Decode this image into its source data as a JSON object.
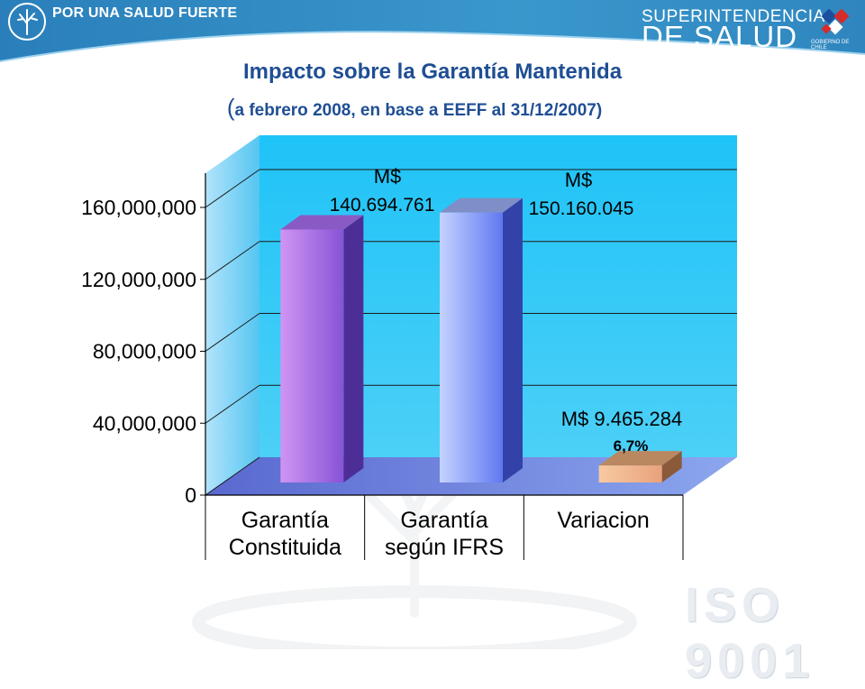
{
  "header": {
    "tagline": "POR UNA SALUD FUERTE",
    "org_line1": "SUPERINTENDENCIA",
    "org_line2": "DE SALUD",
    "gov_label": "GOBIERNO DE CHILE"
  },
  "slide": {
    "title": "Impacto sobre la Garantía Mantenida",
    "subtitle_open": "(",
    "subtitle": "a febrero 2008, en base a EEFF al 31/12/2007)"
  },
  "watermark": {
    "iso": "ISO 9001"
  },
  "colors": {
    "header_blue": "#2e87c0",
    "title_blue": "#1f4e94",
    "plot_back": "#33c6f4",
    "plot_side": "#4fc3f0",
    "floor": "#6a78de"
  },
  "chart_data": {
    "type": "bar",
    "categories": [
      [
        "Garantía",
        "Constituida"
      ],
      [
        "Garantía",
        "según IFRS"
      ],
      [
        "Variacion"
      ]
    ],
    "values": [
      140694761,
      150160045,
      9465284
    ],
    "ylim": [
      0,
      160000000
    ],
    "yticks": [
      0,
      40000000,
      80000000,
      120000000,
      160000000
    ],
    "ytick_labels": [
      "0",
      "40,000,000",
      "80,000,000",
      "120,000,000",
      "160,000,000"
    ],
    "grid": true,
    "annotations": [
      {
        "lines": [
          "M$",
          "140.694.761"
        ]
      },
      {
        "lines": [
          "M$",
          "150.160.045"
        ]
      },
      {
        "lines": [
          "M$ 9.465.284",
          "6,7%"
        ]
      }
    ],
    "title": "",
    "xlabel": "",
    "ylabel": ""
  }
}
